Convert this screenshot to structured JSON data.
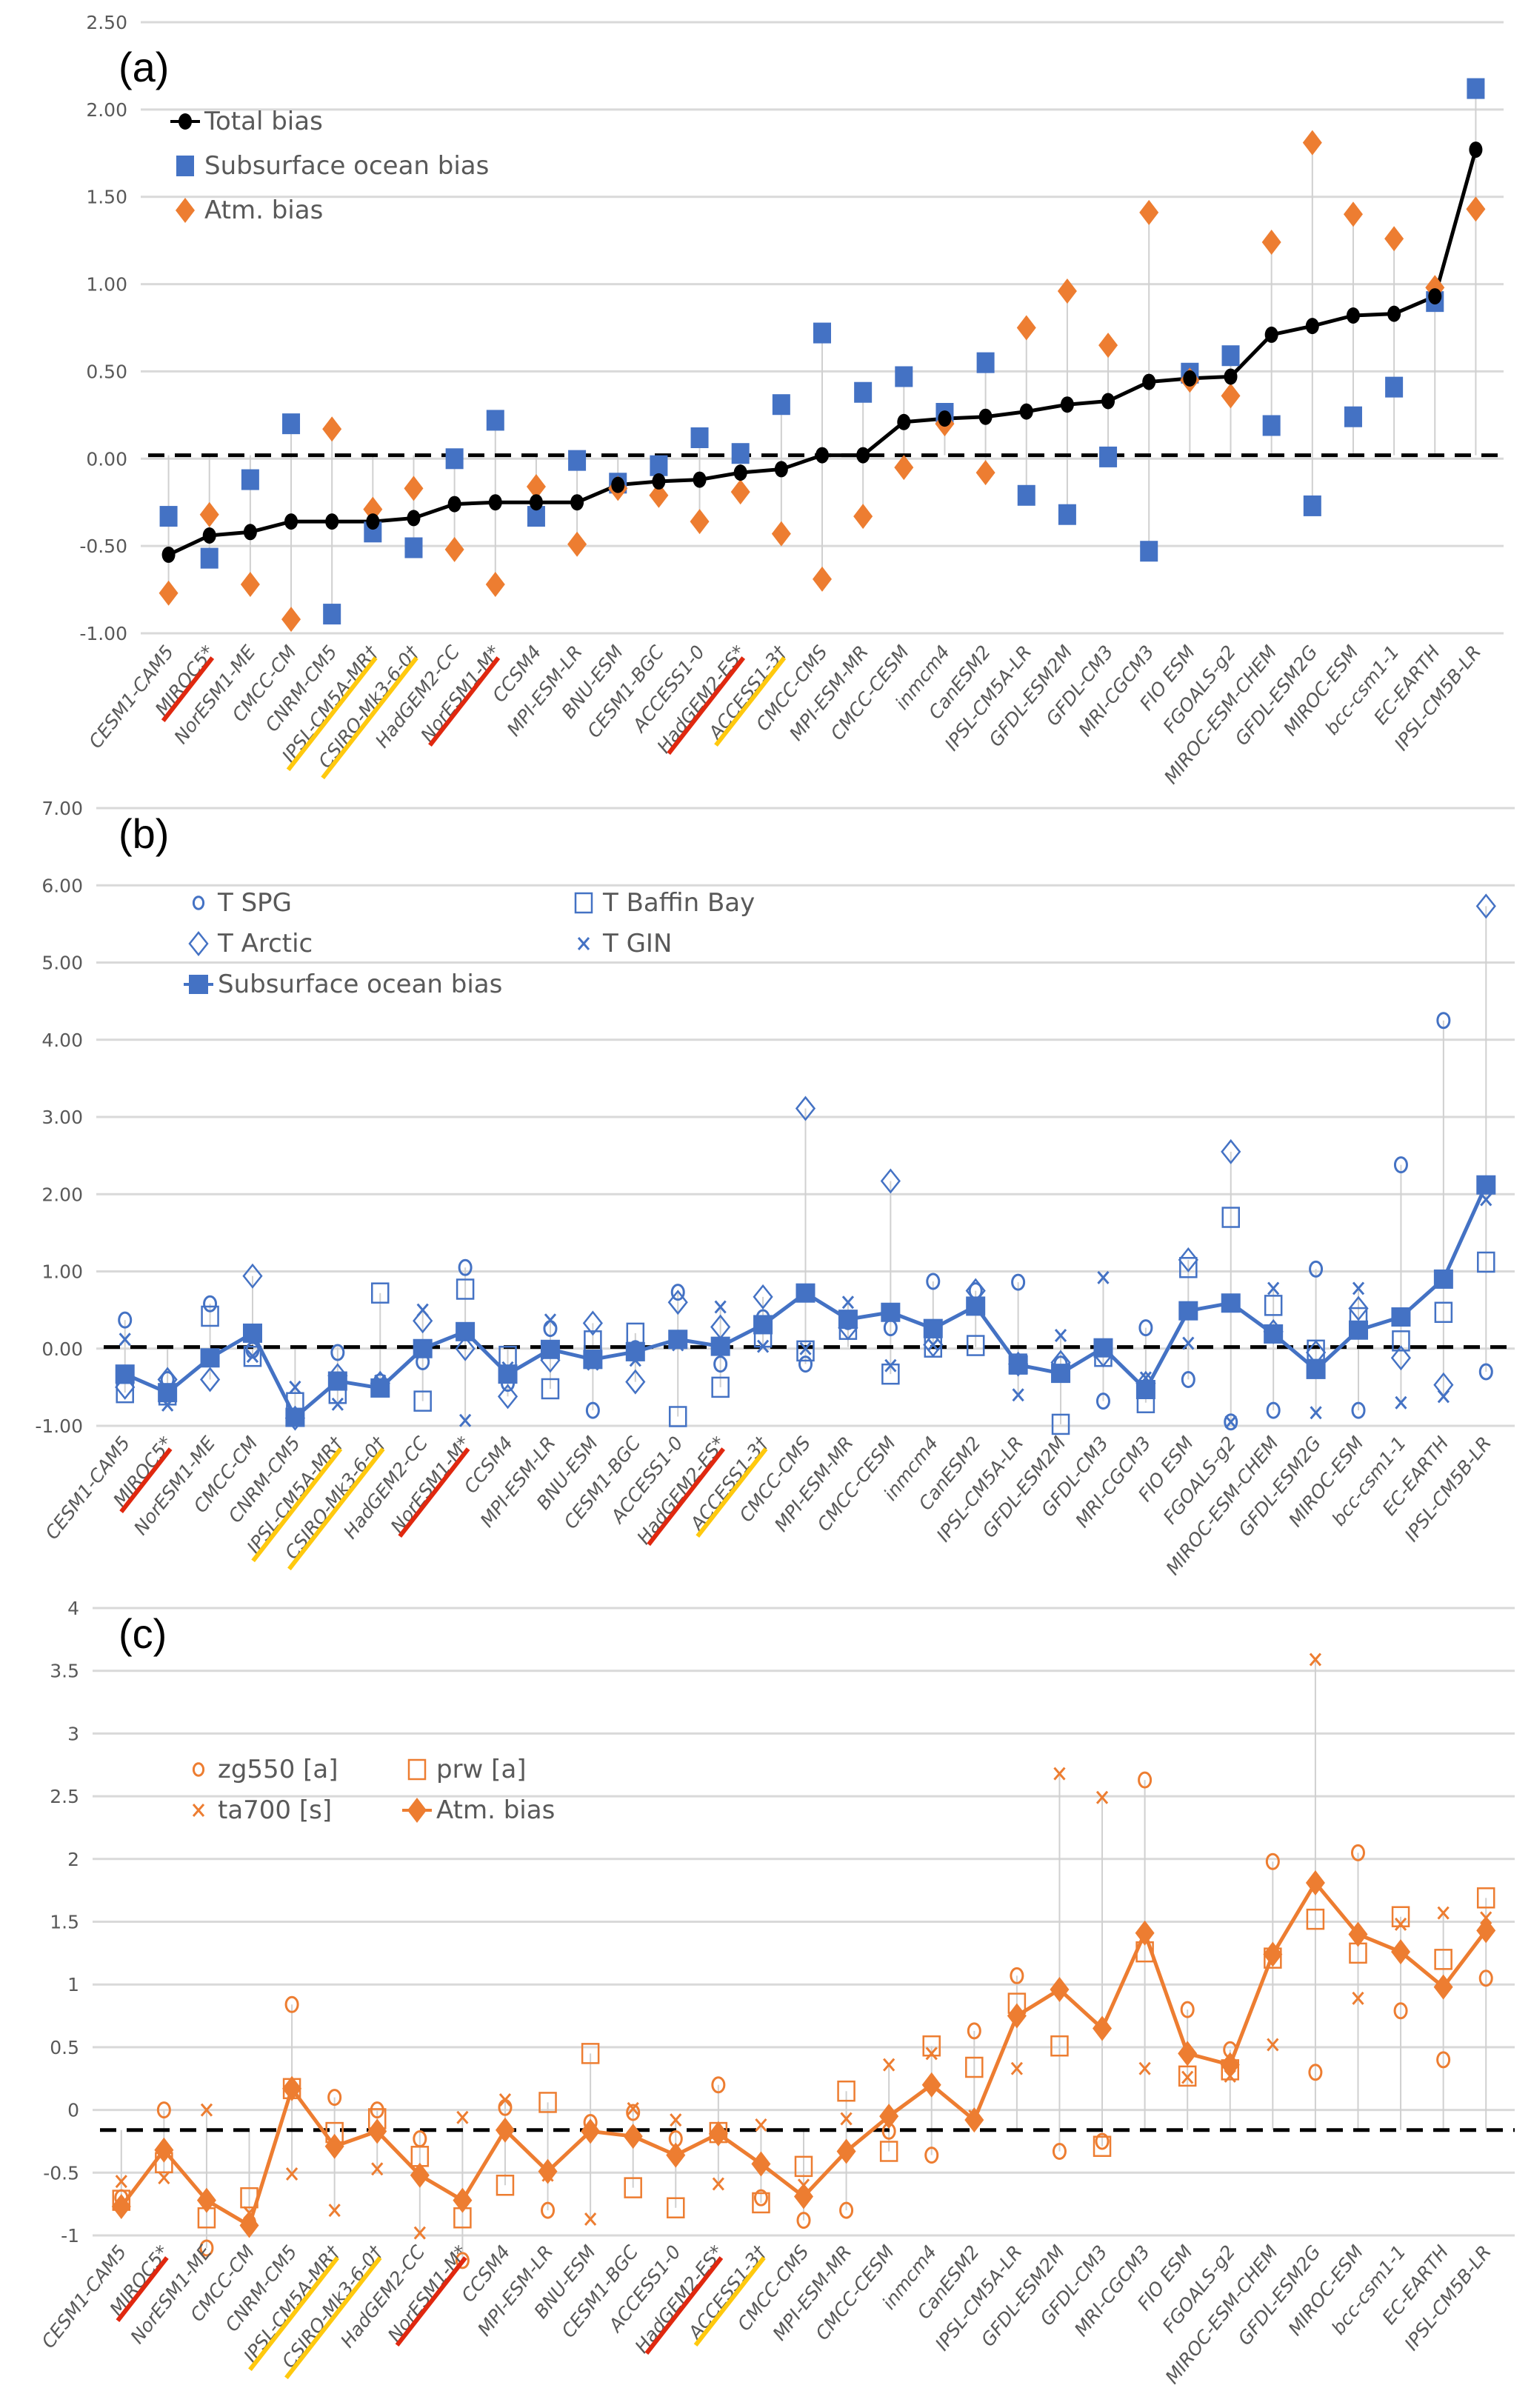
{
  "chart_data": [
    {
      "type": "line",
      "panel_label": "(a)",
      "title": "",
      "xlabel": "",
      "ylabel": "",
      "ylim": [
        -1.0,
        2.5
      ],
      "yticks": [
        "2.50",
        "2.00",
        "1.50",
        "1.00",
        "0.50",
        "0.00",
        "-0.50",
        "-1.00"
      ],
      "ytick_values": [
        2.5,
        2.0,
        1.5,
        1.0,
        0.5,
        0.0,
        -0.5,
        -1.0
      ],
      "reference_line": 0.02,
      "grid": true,
      "legend_position": "top-left",
      "categories": [
        "CESM1-CAM5",
        "MIROC5*",
        "NorESM1-ME",
        "CMCC-CM",
        "CNRM-CM5",
        "IPSL-CM5A-MR†",
        "CSIRO-Mk3-6-0†",
        "HadGEM2-CC",
        "NorESM1-M*",
        "CCSM4",
        "MPI-ESM-LR",
        "BNU-ESM",
        "CESM1-BGC",
        "ACCESS1-0",
        "HadGEM2-ES*",
        "ACCESS1-3†",
        "CMCC-CMS",
        "MPI-ESM-MR",
        "CMCC-CESM",
        "inmcm4",
        "CanESM2",
        "IPSL-CM5A-LR",
        "GFDL-ESM2M",
        "GFDL-CM3",
        "MRI-CGCM3",
        "FIO ESM",
        "FGOALS-g2",
        "MIROC-ESM-CHEM",
        "GFDL-ESM2G",
        "MIROC-ESM",
        "bcc-csm1-1",
        "EC-EARTH",
        "IPSL-CM5B-LR"
      ],
      "series": [
        {
          "name": "Total bias",
          "style": "line-dot",
          "color": "#000000",
          "values": [
            -0.55,
            -0.44,
            -0.42,
            -0.36,
            -0.36,
            -0.36,
            -0.34,
            -0.26,
            -0.25,
            -0.25,
            -0.25,
            -0.15,
            -0.13,
            -0.12,
            -0.08,
            -0.06,
            0.02,
            0.02,
            0.21,
            0.23,
            0.24,
            0.27,
            0.31,
            0.33,
            0.44,
            0.46,
            0.47,
            0.71,
            0.76,
            0.82,
            0.83,
            0.93,
            1.77
          ]
        },
        {
          "name": "Subsurface ocean bias",
          "style": "square",
          "color": "#4472C4",
          "values": [
            -0.33,
            -0.57,
            -0.12,
            0.2,
            -0.89,
            -0.42,
            -0.51,
            0.0,
            0.22,
            -0.33,
            -0.01,
            -0.14,
            -0.04,
            0.12,
            0.03,
            0.31,
            0.72,
            0.38,
            0.47,
            0.26,
            0.55,
            -0.21,
            -0.32,
            0.01,
            -0.53,
            0.49,
            0.59,
            0.19,
            -0.27,
            0.24,
            0.41,
            0.9,
            2.12
          ]
        },
        {
          "name": "Atm. bias",
          "style": "diamond",
          "color": "#ED7D31",
          "values": [
            -0.77,
            -0.32,
            -0.72,
            -0.92,
            0.17,
            -0.29,
            -0.17,
            -0.52,
            -0.72,
            -0.16,
            -0.49,
            -0.17,
            -0.21,
            -0.36,
            -0.19,
            -0.43,
            -0.69,
            -0.33,
            -0.05,
            0.2,
            -0.08,
            0.75,
            0.96,
            0.65,
            1.41,
            0.45,
            0.36,
            1.24,
            1.81,
            1.4,
            1.26,
            0.98,
            1.43
          ]
        }
      ]
    },
    {
      "type": "line",
      "panel_label": "(b)",
      "title": "",
      "xlabel": "",
      "ylabel": "",
      "ylim": [
        -1.0,
        7.0
      ],
      "yticks": [
        "7.00",
        "6.00",
        "5.00",
        "4.00",
        "3.00",
        "2.00",
        "1.00",
        "0.00",
        "-1.00"
      ],
      "ytick_values": [
        7,
        6,
        5,
        4,
        3,
        2,
        1,
        0,
        -1
      ],
      "reference_line": 0.02,
      "grid": true,
      "legend_position": "top-left",
      "categories": [
        "CESM1-CAM5",
        "MIROC5*",
        "NorESM1-ME",
        "CMCC-CM",
        "CNRM-CM5",
        "IPSL-CM5A-MR†",
        "CSIRO-Mk3-6-0†",
        "HadGEM2-CC",
        "NorESM1-M*",
        "CCSM4",
        "MPI-ESM-LR",
        "BNU-ESM",
        "CESM1-BGC",
        "ACCESS1-0",
        "HadGEM2-ES*",
        "ACCESS1-3†",
        "CMCC-CMS",
        "MPI-ESM-MR",
        "CMCC-CESM",
        "inmcm4",
        "CanESM2",
        "IPSL-CM5A-LR",
        "GFDL-ESM2M",
        "GFDL-CM3",
        "MRI-CGCM3",
        "FIO ESM",
        "FGOALS-g2",
        "MIROC-ESM-CHEM",
        "GFDL-ESM2G",
        "MIROC-ESM",
        "bcc-csm1-1",
        "EC-EARTH",
        "IPSL-CM5B-LR"
      ],
      "series": [
        {
          "name": "T SPG",
          "style": "circle-open",
          "color": "#4472C4",
          "values": [
            0.37,
            -0.4,
            0.58,
            -0.02,
            -0.9,
            -0.05,
            -0.43,
            -0.17,
            1.05,
            -0.45,
            0.26,
            -0.8,
            0.0,
            0.73,
            -0.2,
            0.4,
            -0.2,
            0.35,
            0.27,
            0.87,
            0.75,
            0.86,
            -0.2,
            -0.68,
            0.27,
            -0.4,
            -0.95,
            -0.8,
            1.03,
            -0.8,
            2.38,
            4.25,
            -0.3
          ]
        },
        {
          "name": "T Baffin Bay",
          "style": "square-open",
          "color": "#4472C4",
          "values": [
            -0.57,
            -0.6,
            0.42,
            -0.1,
            -0.7,
            -0.58,
            0.72,
            -0.68,
            0.77,
            -0.1,
            -0.52,
            0.1,
            0.2,
            -0.88,
            -0.5,
            0.15,
            -0.03,
            0.25,
            -0.33,
            0.02,
            0.04,
            -0.2,
            -0.98,
            -0.1,
            -0.7,
            1.05,
            1.7,
            0.56,
            -0.02,
            0.4,
            0.1,
            0.47,
            1.12
          ]
        },
        {
          "name": "T Arctic",
          "style": "diamond-open",
          "color": "#4472C4",
          "values": [
            -0.5,
            -0.4,
            -0.4,
            0.94,
            -0.9,
            -0.35,
            -0.45,
            0.36,
            0.0,
            -0.62,
            -0.15,
            0.33,
            -0.43,
            0.6,
            0.28,
            0.67,
            3.11,
            0.27,
            2.17,
            0.05,
            0.75,
            -0.2,
            -0.18,
            -0.08,
            -0.45,
            1.15,
            2.55,
            0.22,
            -0.05,
            0.52,
            -0.12,
            -0.47,
            5.73
          ]
        },
        {
          "name": "T GIN",
          "style": "x",
          "color": "#4472C4",
          "values": [
            0.12,
            -0.73,
            -0.1,
            -0.1,
            -0.5,
            -0.72,
            -0.42,
            0.5,
            -0.93,
            -0.25,
            0.37,
            -0.2,
            -0.15,
            0.05,
            0.54,
            0.03,
            0.0,
            0.6,
            -0.22,
            0.05,
            0.55,
            -0.6,
            0.17,
            0.92,
            -0.38,
            0.07,
            -0.95,
            0.78,
            -0.83,
            0.78,
            -0.7,
            -0.62,
            1.93
          ]
        },
        {
          "name": "Subsurface ocean bias",
          "style": "line-square",
          "color": "#4472C4",
          "values": [
            -0.33,
            -0.57,
            -0.12,
            0.2,
            -0.89,
            -0.42,
            -0.51,
            0.0,
            0.22,
            -0.33,
            -0.01,
            -0.14,
            -0.04,
            0.12,
            0.03,
            0.31,
            0.72,
            0.38,
            0.47,
            0.26,
            0.55,
            -0.21,
            -0.32,
            0.01,
            -0.53,
            0.49,
            0.59,
            0.19,
            -0.27,
            0.24,
            0.41,
            0.9,
            2.12
          ]
        }
      ]
    },
    {
      "type": "line",
      "panel_label": "(c)",
      "title": "",
      "xlabel": "",
      "ylabel": "",
      "ylim": [
        -1,
        4
      ],
      "yticks": [
        "4",
        "3.5",
        "3",
        "2.5",
        "2",
        "1.5",
        "1",
        "0.5",
        "0",
        "-0.5",
        "-1"
      ],
      "ytick_values": [
        4,
        3.5,
        3,
        2.5,
        2,
        1.5,
        1,
        0.5,
        0,
        -0.5,
        -1
      ],
      "reference_line": -0.16,
      "grid": true,
      "legend_position": "top-left",
      "categories": [
        "CESM1-CAM5",
        "MIROC5*",
        "NorESM1-ME",
        "CMCC-CM",
        "CNRM-CM5",
        "IPSL-CM5A-MR†",
        "CSIRO-Mk3-6-0†",
        "HadGEM2-CC",
        "NorESM1-M*",
        "CCSM4",
        "MPI-ESM-LR",
        "BNU-ESM",
        "CESM1-BGC",
        "ACCESS1-0",
        "HadGEM2-ES*",
        "ACCESS1-3†",
        "CMCC-CMS",
        "MPI-ESM-MR",
        "CMCC-CESM",
        "inmcm4",
        "CanESM2",
        "IPSL-CM5A-LR",
        "GFDL-ESM2M",
        "GFDL-CM3",
        "MRI-CGCM3",
        "FIO ESM",
        "FGOALS-g2",
        "MIROC-ESM-CHEM",
        "GFDL-ESM2G",
        "MIROC-ESM",
        "bcc-csm1-1",
        "EC-EARTH",
        "IPSL-CM5B-LR"
      ],
      "series": [
        {
          "name": "zg550 [a]",
          "style": "circle-open",
          "color": "#ED7D31",
          "values": [
            -0.7,
            0.0,
            -1.1,
            -0.9,
            0.84,
            0.1,
            0.0,
            -0.23,
            -1.2,
            0.02,
            -0.8,
            -0.1,
            -0.02,
            -0.23,
            0.2,
            -0.7,
            -0.88,
            -0.8,
            -0.17,
            -0.36,
            0.63,
            1.07,
            -0.33,
            -0.25,
            2.63,
            0.8,
            0.48,
            1.98,
            0.3,
            2.05,
            0.79,
            0.4,
            1.05
          ]
        },
        {
          "name": "prw [a]",
          "style": "square-open",
          "color": "#ED7D31",
          "values": [
            -0.72,
            -0.42,
            -0.86,
            -0.7,
            0.17,
            -0.18,
            -0.07,
            -0.37,
            -0.86,
            -0.6,
            0.06,
            0.45,
            -0.62,
            -0.78,
            -0.18,
            -0.74,
            -0.45,
            0.15,
            -0.33,
            0.51,
            0.34,
            0.85,
            0.51,
            -0.29,
            1.26,
            0.27,
            0.32,
            1.21,
            1.52,
            1.25,
            1.54,
            1.2,
            1.69
          ]
        },
        {
          "name": "ta700 [s]",
          "style": "x",
          "color": "#ED7D31",
          "values": [
            -0.57,
            -0.54,
            0.0,
            -0.82,
            -0.51,
            -0.8,
            -0.47,
            -0.98,
            -0.06,
            0.08,
            -0.52,
            -0.87,
            0.01,
            -0.08,
            -0.59,
            -0.12,
            -0.6,
            -0.07,
            0.36,
            0.45,
            -0.05,
            0.33,
            2.68,
            2.49,
            0.33,
            0.26,
            0.27,
            0.52,
            3.59,
            0.89,
            1.48,
            1.57,
            1.53
          ]
        },
        {
          "name": "Atm. bias",
          "style": "line-diamond",
          "color": "#ED7D31",
          "values": [
            -0.77,
            -0.32,
            -0.72,
            -0.92,
            0.17,
            -0.29,
            -0.17,
            -0.52,
            -0.72,
            -0.16,
            -0.49,
            -0.17,
            -0.21,
            -0.36,
            -0.19,
            -0.43,
            -0.69,
            -0.33,
            -0.05,
            0.2,
            -0.08,
            0.75,
            0.96,
            0.65,
            1.41,
            0.45,
            0.36,
            1.24,
            1.81,
            1.4,
            1.26,
            0.98,
            1.43
          ]
        }
      ]
    }
  ],
  "model_markers": {
    "red_underline": [
      "MIROC5*",
      "NorESM1-M*",
      "HadGEM2-ES*"
    ],
    "yellow_underline": [
      "IPSL-CM5A-MR†",
      "CSIRO-Mk3-6-0†",
      "ACCESS1-3†"
    ],
    "red_color": "#E0280F",
    "yellow_color": "#FFC90E"
  },
  "colors": {
    "ocean_blue": "#4472C4",
    "atm_orange": "#ED7D31",
    "total_black": "#000000",
    "grid": "#D9D9D9",
    "tick_text": "#595959"
  }
}
